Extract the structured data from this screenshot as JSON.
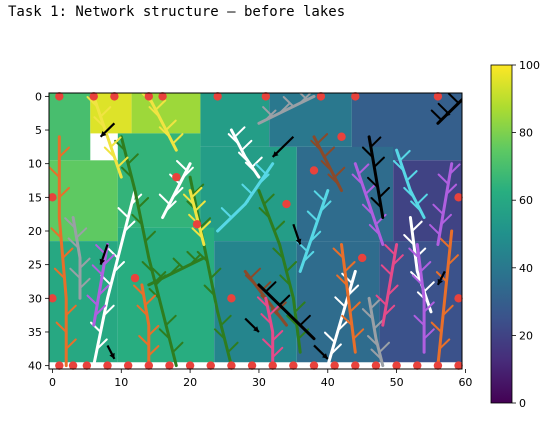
{
  "cell": {
    "heading": "Task 1: Network structure – before lakes"
  },
  "chart_data": {
    "type": "heatmap",
    "title": "",
    "xlabel": "",
    "ylabel": "",
    "xlim": [
      -0.5,
      59.5
    ],
    "ylim": [
      40.5,
      -0.5
    ],
    "xticks": [
      0,
      10,
      20,
      30,
      40,
      50,
      60
    ],
    "yticks": [
      0,
      5,
      10,
      15,
      20,
      25,
      30,
      35,
      40
    ],
    "colorbar": {
      "colormap": "viridis",
      "range": [
        0,
        100
      ],
      "ticks": [
        0,
        20,
        40,
        60,
        80,
        100
      ],
      "stops": [
        "#440154",
        "#472c7a",
        "#3b528b",
        "#2c728e",
        "#21918c",
        "#28ae80",
        "#5ec962",
        "#addc30",
        "#fde725"
      ]
    },
    "elevation_patches": [
      {
        "x0": 0,
        "y0": 0,
        "x1": 6,
        "y1": 10,
        "value": 70
      },
      {
        "x0": 6,
        "y0": 0,
        "x1": 12,
        "y1": 6,
        "value": 95
      },
      {
        "x0": 12,
        "y0": 0,
        "x1": 22,
        "y1": 6,
        "value": 85
      },
      {
        "x0": 22,
        "y0": 0,
        "x1": 32,
        "y1": 8,
        "value": 55
      },
      {
        "x0": 32,
        "y0": 0,
        "x1": 44,
        "y1": 8,
        "value": 40
      },
      {
        "x0": 44,
        "y0": 0,
        "x1": 60,
        "y1": 10,
        "value": 30
      },
      {
        "x0": 0,
        "y0": 10,
        "x1": 10,
        "y1": 22,
        "value": 75
      },
      {
        "x0": 10,
        "y0": 6,
        "x1": 22,
        "y1": 20,
        "value": 65
      },
      {
        "x0": 22,
        "y0": 8,
        "x1": 36,
        "y1": 22,
        "value": 55
      },
      {
        "x0": 36,
        "y0": 8,
        "x1": 50,
        "y1": 22,
        "value": 35
      },
      {
        "x0": 50,
        "y0": 10,
        "x1": 60,
        "y1": 22,
        "value": 20
      },
      {
        "x0": 0,
        "y0": 22,
        "x1": 10,
        "y1": 40,
        "value": 60
      },
      {
        "x0": 10,
        "y0": 20,
        "x1": 24,
        "y1": 40,
        "value": 62
      },
      {
        "x0": 24,
        "y0": 22,
        "x1": 36,
        "y1": 40,
        "value": 45
      },
      {
        "x0": 36,
        "y0": 22,
        "x1": 48,
        "y1": 40,
        "value": 35
      },
      {
        "x0": 48,
        "y0": 22,
        "x1": 60,
        "y1": 40,
        "value": 25
      }
    ],
    "river_networks": [
      {
        "color": "#ffffff",
        "paths": [
          [
            [
              6,
              40
            ],
            [
              8,
              30
            ],
            [
              10,
              22
            ],
            [
              12,
              14
            ]
          ],
          [
            [
              16,
              18
            ],
            [
              18,
              14
            ],
            [
              20,
              10
            ]
          ],
          [
            [
              40,
              40
            ],
            [
              42,
              33
            ],
            [
              44,
              26
            ]
          ],
          [
            [
              52,
              18
            ],
            [
              53,
              26
            ],
            [
              55,
              32
            ]
          ],
          [
            [
              26,
              5
            ],
            [
              28,
              9
            ],
            [
              30,
              12
            ]
          ]
        ]
      },
      {
        "color": "#2e7d1f",
        "paths": [
          [
            [
              18,
              40
            ],
            [
              16,
              32
            ],
            [
              14,
              24
            ],
            [
              12,
              14
            ],
            [
              10,
              6
            ]
          ],
          [
            [
              26,
              40
            ],
            [
              24,
              32
            ],
            [
              22,
              22
            ],
            [
              20,
              12
            ]
          ],
          [
            [
              36,
              38
            ],
            [
              35,
              30
            ],
            [
              33,
              22
            ],
            [
              30,
              14
            ]
          ],
          [
            [
              14,
              28
            ],
            [
              18,
              26
            ],
            [
              22,
              24
            ]
          ]
        ]
      },
      {
        "color": "#f0e442",
        "paths": [
          [
            [
              10,
              12
            ],
            [
              8,
              6
            ],
            [
              6,
              0
            ]
          ],
          [
            [
              18,
              8
            ],
            [
              16,
              4
            ],
            [
              14,
              0
            ]
          ],
          [
            [
              20,
              14
            ],
            [
              21,
              18
            ],
            [
              22,
              22
            ]
          ]
        ]
      },
      {
        "color": "#e86f2a",
        "paths": [
          [
            [
              2,
              40
            ],
            [
              2,
              30
            ],
            [
              1,
              18
            ],
            [
              1,
              6
            ]
          ],
          [
            [
              14,
              40
            ],
            [
              14,
              34
            ],
            [
              13,
              28
            ]
          ],
          [
            [
              44,
              38
            ],
            [
              43,
              30
            ],
            [
              42,
              22
            ]
          ],
          [
            [
              56,
              40
            ],
            [
              57,
              30
            ],
            [
              58,
              20
            ]
          ]
        ]
      },
      {
        "color": "#b05fe0",
        "paths": [
          [
            [
              6,
              34
            ],
            [
              7,
              28
            ],
            [
              8,
              22
            ]
          ],
          [
            [
              44,
              10
            ],
            [
              46,
              16
            ],
            [
              48,
              22
            ]
          ],
          [
            [
              54,
              38
            ],
            [
              54,
              30
            ],
            [
              53,
              22
            ]
          ],
          [
            [
              58,
              10
            ],
            [
              57,
              16
            ],
            [
              56,
              22
            ]
          ]
        ]
      },
      {
        "color": "#57d8e6",
        "paths": [
          [
            [
              24,
              20
            ],
            [
              28,
              16
            ],
            [
              32,
              10
            ]
          ],
          [
            [
              36,
              26
            ],
            [
              38,
              20
            ],
            [
              40,
              14
            ]
          ],
          [
            [
              50,
              8
            ],
            [
              52,
              14
            ],
            [
              54,
              18
            ]
          ]
        ]
      },
      {
        "color": "#9aa0a6",
        "paths": [
          [
            [
              4,
              30
            ],
            [
              4,
              24
            ],
            [
              3,
              18
            ]
          ],
          [
            [
              30,
              4
            ],
            [
              34,
              2
            ],
            [
              38,
              0
            ]
          ],
          [
            [
              46,
              30
            ],
            [
              47,
              36
            ],
            [
              48,
              40
            ]
          ]
        ]
      },
      {
        "color": "#8a4a2a",
        "paths": [
          [
            [
              28,
              26
            ],
            [
              31,
              30
            ],
            [
              34,
              34
            ]
          ],
          [
            [
              38,
              6
            ],
            [
              40,
              10
            ],
            [
              42,
              14
            ]
          ]
        ]
      },
      {
        "color": "#e64a8a",
        "paths": [
          [
            [
              48,
              34
            ],
            [
              49,
              28
            ],
            [
              50,
              22
            ]
          ],
          [
            [
              32,
              40
            ],
            [
              32,
              35
            ],
            [
              31,
              30
            ]
          ]
        ]
      },
      {
        "color": "#000000",
        "paths": [
          [
            [
              60,
              0
            ],
            [
              58,
              2
            ],
            [
              56,
              4
            ]
          ],
          [
            [
              30,
              28
            ],
            [
              34,
              32
            ],
            [
              38,
              36
            ]
          ],
          [
            [
              46,
              6
            ],
            [
              47,
              12
            ],
            [
              48,
              18
            ]
          ]
        ]
      }
    ],
    "outlets": [
      [
        1,
        0
      ],
      [
        6,
        0
      ],
      [
        9,
        0
      ],
      [
        14,
        0
      ],
      [
        16,
        0
      ],
      [
        24,
        0
      ],
      [
        31,
        0
      ],
      [
        39,
        0
      ],
      [
        44,
        0
      ],
      [
        56,
        0
      ],
      [
        0,
        15
      ],
      [
        59,
        15
      ],
      [
        0,
        30
      ],
      [
        59,
        30
      ],
      [
        1,
        40
      ],
      [
        3,
        40
      ],
      [
        5,
        40
      ],
      [
        8,
        40
      ],
      [
        11,
        40
      ],
      [
        14,
        40
      ],
      [
        17,
        40
      ],
      [
        20,
        40
      ],
      [
        23,
        40
      ],
      [
        26,
        40
      ],
      [
        29,
        40
      ],
      [
        32,
        40
      ],
      [
        35,
        40
      ],
      [
        38,
        40
      ],
      [
        41,
        40
      ],
      [
        44,
        40
      ],
      [
        47,
        40
      ],
      [
        50,
        40
      ],
      [
        53,
        40
      ],
      [
        56,
        40
      ],
      [
        59,
        40
      ],
      [
        18,
        12
      ],
      [
        42,
        6
      ],
      [
        34,
        16
      ],
      [
        12,
        27
      ],
      [
        26,
        30
      ],
      [
        45,
        24
      ],
      [
        21,
        19
      ],
      [
        38,
        11
      ]
    ],
    "arrows": [
      {
        "from": [
          9,
          4
        ],
        "to": [
          7,
          6
        ]
      },
      {
        "from": [
          35,
          6
        ],
        "to": [
          32,
          9
        ]
      },
      {
        "from": [
          8,
          22
        ],
        "to": [
          7,
          25
        ]
      },
      {
        "from": [
          35,
          19
        ],
        "to": [
          36,
          22
        ]
      },
      {
        "from": [
          28,
          33
        ],
        "to": [
          30,
          35
        ]
      },
      {
        "from": [
          59,
          1
        ],
        "to": [
          57,
          3
        ]
      },
      {
        "from": [
          57,
          26
        ],
        "to": [
          56,
          28
        ]
      },
      {
        "from": [
          38,
          37
        ],
        "to": [
          40,
          39
        ]
      },
      {
        "from": [
          8,
          37
        ],
        "to": [
          9,
          39
        ]
      }
    ]
  }
}
